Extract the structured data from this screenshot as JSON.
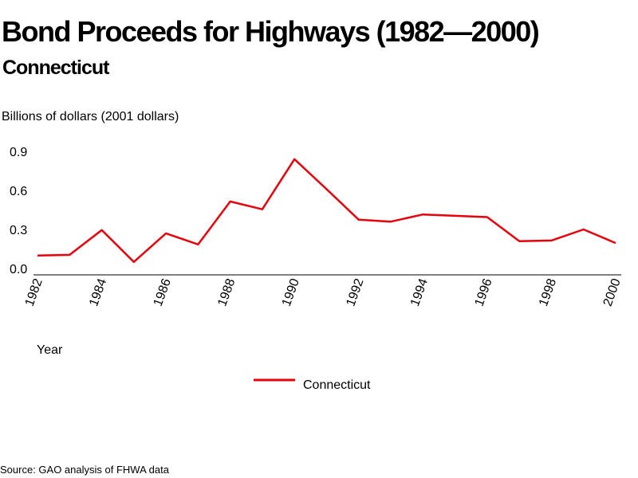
{
  "page": {
    "title": "Bond Proceeds for Highways (1982—2000)",
    "subtitle": "Connecticut",
    "source": "Source: GAO analysis of FHWA data"
  },
  "colors": {
    "line": "#e8000b",
    "axis": "#000000",
    "text": "#000000"
  },
  "chart_data": {
    "type": "line",
    "title": "Bond Proceeds for Highways (1982—2000)",
    "subtitle": "Connecticut",
    "xlabel": "Year",
    "ylabel": "Billions of dollars (2001 dollars)",
    "x": [
      1982,
      1983,
      1984,
      1985,
      1986,
      1987,
      1988,
      1989,
      1990,
      1991,
      1992,
      1993,
      1994,
      1995,
      1996,
      1997,
      1998,
      1999,
      2000
    ],
    "xlim": [
      1982,
      2000
    ],
    "ylim": [
      0,
      0.9
    ],
    "yticks": [
      "0.0",
      "0.3",
      "0.6",
      "0.9"
    ],
    "ytick_values": [
      0,
      0.3,
      0.6,
      0.9
    ],
    "xticks": [
      "1982",
      "1984",
      "1986",
      "1988",
      "1990",
      "1992",
      "1994",
      "1996",
      "1998",
      "2000"
    ],
    "xtick_values": [
      1982,
      1984,
      1986,
      1988,
      1990,
      1992,
      1994,
      1996,
      1998,
      2000
    ],
    "grid": false,
    "legend_position": "bottom-center",
    "series": [
      {
        "name": "Connecticut",
        "color": "#e8000b",
        "values": [
          0.1,
          0.105,
          0.295,
          0.05,
          0.27,
          0.185,
          0.515,
          0.455,
          0.84,
          0.61,
          0.375,
          0.36,
          0.415,
          0.405,
          0.395,
          0.21,
          0.215,
          0.3,
          0.195
        ]
      }
    ]
  }
}
